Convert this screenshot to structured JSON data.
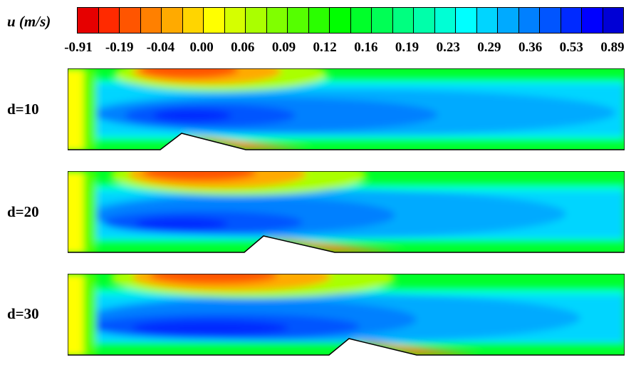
{
  "legend": {
    "title": "u (m/s)",
    "ticks": [
      "-0.91",
      "-0.19",
      "-0.04",
      "0.00",
      "0.06",
      "0.09",
      "0.12",
      "0.16",
      "0.19",
      "0.23",
      "0.29",
      "0.36",
      "0.53",
      "0.89"
    ],
    "colors": [
      "#e60000",
      "#ff2a00",
      "#ff5500",
      "#ff8000",
      "#ffaa00",
      "#ffd500",
      "#ffff00",
      "#d5ff00",
      "#aaff00",
      "#80ff00",
      "#55ff00",
      "#2aff00",
      "#00ff00",
      "#00ff2a",
      "#00ff55",
      "#00ff80",
      "#00ffaa",
      "#00ffd5",
      "#00ffff",
      "#00d5ff",
      "#00aaff",
      "#0080ff",
      "#0055ff",
      "#002aff",
      "#0000ff",
      "#0000d5"
    ]
  },
  "cases": [
    {
      "label": "d=10",
      "bump_position": 10
    },
    {
      "label": "d=20",
      "bump_position": 20
    },
    {
      "label": "d=30",
      "bump_position": 30
    }
  ]
}
